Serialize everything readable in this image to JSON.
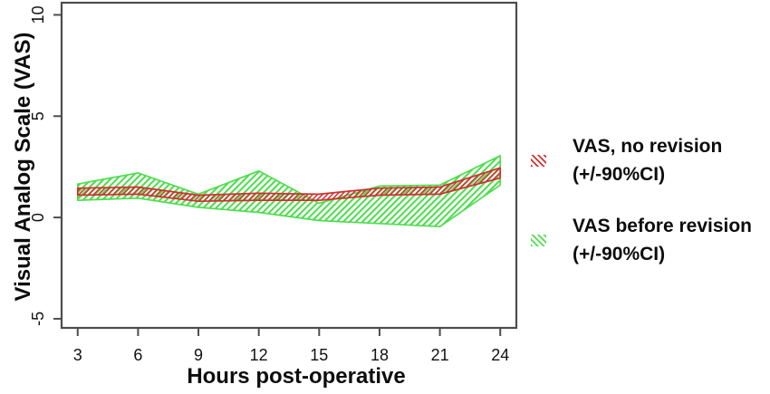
{
  "figure": {
    "background": "#ffffff",
    "xlabel": "Hours post-operative",
    "ylabel": "Visual Analog Scale (VAS)"
  },
  "axis": {
    "line_color": "#4d4d4d",
    "tick_label_color": "#111111"
  },
  "legend": {
    "items": [
      {
        "line1": "VAS, no revision",
        "line2": "(+/-90%CI)",
        "swatch": "red-hatch",
        "color": "#cf3030"
      },
      {
        "line1": "VAS before revision",
        "line2": "(+/-90%CI)",
        "swatch": "green-hatch",
        "color": "#4fdd4f"
      }
    ]
  },
  "chart_data": {
    "type": "area",
    "title": "",
    "xlabel": "Hours post-operative",
    "ylabel": "Visual Analog Scale (VAS)",
    "x": [
      3,
      6,
      9,
      12,
      15,
      18,
      21,
      24
    ],
    "xticks": [
      3,
      6,
      9,
      12,
      15,
      18,
      21,
      24
    ],
    "yticks": [
      -5,
      0,
      5,
      10
    ],
    "xlim": [
      2.2,
      24.8
    ],
    "ylim": [
      -5.45,
      10.6
    ],
    "grid": false,
    "legend_position": "right-of-plot",
    "series": [
      {
        "name": "VAS, no revision (+/-90%CI)",
        "style": "hatched-band",
        "color": "#cf3030",
        "upper": [
          1.45,
          1.5,
          1.1,
          1.2,
          1.15,
          1.45,
          1.5,
          2.45
        ],
        "lower": [
          1.1,
          1.15,
          0.8,
          0.85,
          0.85,
          1.1,
          1.15,
          1.95
        ]
      },
      {
        "name": "VAS before revision (+/-90%CI)",
        "style": "hatched-band",
        "color": "#4fdd4f",
        "upper": [
          1.65,
          2.2,
          1.15,
          2.3,
          0.7,
          1.55,
          1.6,
          3.05
        ],
        "lower": [
          0.85,
          0.95,
          0.5,
          0.25,
          -0.15,
          -0.3,
          -0.45,
          1.6
        ]
      }
    ]
  }
}
